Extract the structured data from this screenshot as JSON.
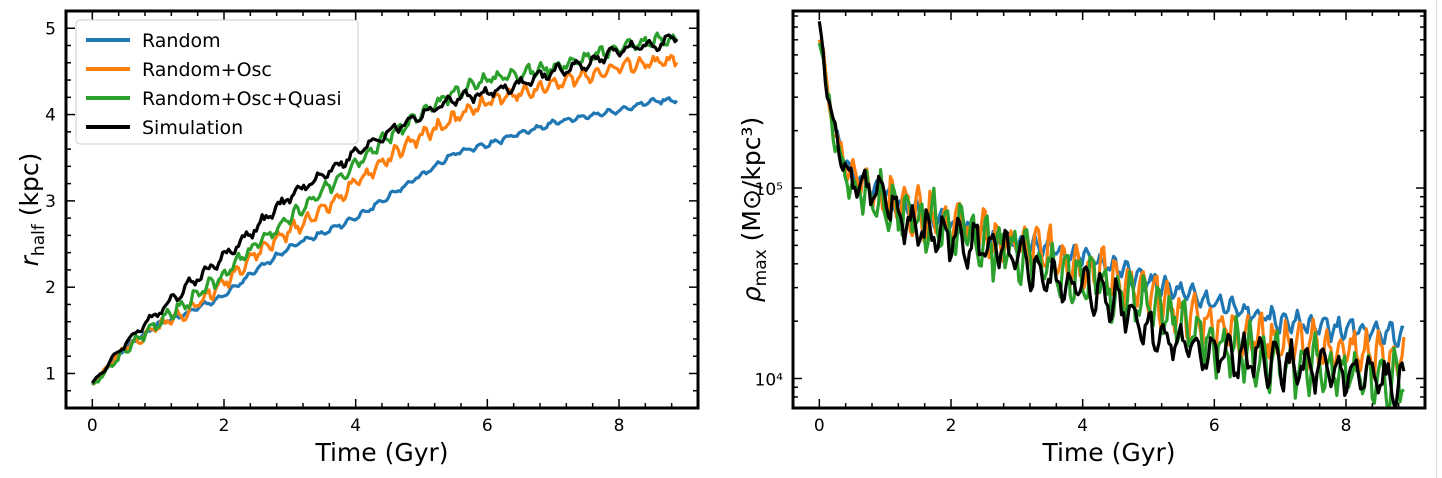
{
  "colors": {
    "Random": "#1f77b4",
    "Random+Osc": "#ff7f0e",
    "Random+Osc+Quasi": "#2ca02c",
    "Simulation": "#000000"
  },
  "chart_data": [
    {
      "type": "line",
      "xlabel": "Time (Gyr)",
      "ylabel": {
        "main": "r",
        "sub": "half",
        "unit": " (kpc)"
      },
      "xlim": [
        -0.4,
        9.2
      ],
      "ylim": [
        0.6,
        5.2
      ],
      "xticks": [
        0,
        2,
        4,
        6,
        8
      ],
      "yticks": [
        1,
        2,
        3,
        4,
        5
      ],
      "yscale": "linear",
      "legend": "top-left",
      "series": [
        {
          "name": "Random",
          "color": "#1f77b4",
          "width": 3.2,
          "points": [
            [
              0,
              0.87
            ],
            [
              0.5,
              1.3
            ],
            [
              1,
              1.57
            ],
            [
              1.5,
              1.72
            ],
            [
              2,
              1.9
            ],
            [
              2.5,
              2.2
            ],
            [
              3,
              2.47
            ],
            [
              3.5,
              2.63
            ],
            [
              4,
              2.8
            ],
            [
              4.5,
              3.05
            ],
            [
              5,
              3.3
            ],
            [
              5.5,
              3.55
            ],
            [
              6,
              3.65
            ],
            [
              6.5,
              3.78
            ],
            [
              7,
              3.9
            ],
            [
              7.5,
              3.98
            ],
            [
              8,
              4.05
            ],
            [
              8.5,
              4.15
            ],
            [
              8.9,
              4.18
            ]
          ],
          "noise": {
            "amp": 0.035,
            "period": 0.22,
            "seed": 1
          }
        },
        {
          "name": "Random+Osc",
          "color": "#ff7f0e",
          "width": 3.2,
          "points": [
            [
              0,
              0.87
            ],
            [
              0.5,
              1.3
            ],
            [
              1,
              1.55
            ],
            [
              1.5,
              1.75
            ],
            [
              2,
              2.05
            ],
            [
              2.5,
              2.4
            ],
            [
              3,
              2.65
            ],
            [
              3.5,
              2.9
            ],
            [
              4,
              3.2
            ],
            [
              4.5,
              3.5
            ],
            [
              5,
              3.75
            ],
            [
              5.5,
              3.95
            ],
            [
              6,
              4.15
            ],
            [
              6.5,
              4.25
            ],
            [
              7,
              4.35
            ],
            [
              7.5,
              4.45
            ],
            [
              8,
              4.55
            ],
            [
              8.5,
              4.6
            ],
            [
              8.9,
              4.63
            ]
          ],
          "noise": {
            "amp": 0.085,
            "period": 0.22,
            "seed": 2
          }
        },
        {
          "name": "Random+Osc+Quasi",
          "color": "#2ca02c",
          "width": 3.2,
          "points": [
            [
              0,
              0.85
            ],
            [
              0.5,
              1.27
            ],
            [
              1,
              1.6
            ],
            [
              1.5,
              1.85
            ],
            [
              2,
              2.15
            ],
            [
              2.5,
              2.5
            ],
            [
              3,
              2.8
            ],
            [
              3.5,
              3.1
            ],
            [
              4,
              3.45
            ],
            [
              4.5,
              3.75
            ],
            [
              5,
              4
            ],
            [
              5.5,
              4.25
            ],
            [
              6,
              4.42
            ],
            [
              6.5,
              4.48
            ],
            [
              7,
              4.55
            ],
            [
              7.5,
              4.65
            ],
            [
              8,
              4.78
            ],
            [
              8.5,
              4.85
            ],
            [
              8.9,
              4.88
            ]
          ],
          "noise": {
            "amp": 0.085,
            "period": 0.22,
            "seed": 3
          }
        },
        {
          "name": "Simulation",
          "color": "#000000",
          "width": 3.2,
          "points": [
            [
              0,
              0.88
            ],
            [
              0.5,
              1.35
            ],
            [
              1,
              1.72
            ],
            [
              1.5,
              2.05
            ],
            [
              2,
              2.35
            ],
            [
              2.5,
              2.7
            ],
            [
              3,
              3.05
            ],
            [
              3.5,
              3.3
            ],
            [
              4,
              3.55
            ],
            [
              4.5,
              3.8
            ],
            [
              5,
              4
            ],
            [
              5.5,
              4.18
            ],
            [
              6,
              4.25
            ],
            [
              6.5,
              4.35
            ],
            [
              7,
              4.5
            ],
            [
              7.5,
              4.58
            ],
            [
              8,
              4.75
            ],
            [
              8.5,
              4.8
            ],
            [
              8.9,
              4.9
            ]
          ],
          "noise": {
            "amp": 0.07,
            "period": 0.28,
            "seed": 4
          }
        }
      ]
    },
    {
      "type": "line",
      "xlabel": "Time (Gyr)",
      "ylabel": {
        "main": "ρ",
        "sub": "max",
        "unit": " (M⊙/kpc³)"
      },
      "xlim": [
        -0.4,
        9.2
      ],
      "ylim": [
        7000,
        850000
      ],
      "xticks": [
        0,
        2,
        4,
        6,
        8
      ],
      "yticks": [
        10000,
        100000
      ],
      "ytick_labels": [
        "10⁴",
        "10⁵"
      ],
      "yscale": "log",
      "series": [
        {
          "name": "Random",
          "color": "#1f77b4",
          "width": 3.2,
          "points": [
            [
              0,
              600000
            ],
            [
              0.05,
              550000
            ],
            [
              0.1,
              350000
            ],
            [
              0.2,
              220000
            ],
            [
              0.35,
              150000
            ],
            [
              0.5,
              120000
            ],
            [
              0.75,
              100000
            ],
            [
              1,
              90000
            ],
            [
              1.5,
              75000
            ],
            [
              2,
              65000
            ],
            [
              2.5,
              57000
            ],
            [
              3,
              52000
            ],
            [
              3.5,
              48000
            ],
            [
              4,
              44000
            ],
            [
              4.5,
              38000
            ],
            [
              5,
              32000
            ],
            [
              5.5,
              28000
            ],
            [
              6,
              25000
            ],
            [
              6.5,
              22000
            ],
            [
              7,
              20000
            ],
            [
              7.5,
              19000
            ],
            [
              8,
              18000
            ],
            [
              8.5,
              17500
            ],
            [
              8.9,
              17000
            ]
          ],
          "noise": {
            "amp": 0.06,
            "period": 0.2,
            "seed": 5
          }
        },
        {
          "name": "Random+Osc",
          "color": "#ff7f0e",
          "width": 3.2,
          "points": [
            [
              0,
              650000
            ],
            [
              0.05,
              580000
            ],
            [
              0.1,
              350000
            ],
            [
              0.2,
              210000
            ],
            [
              0.35,
              140000
            ],
            [
              0.5,
              115000
            ],
            [
              0.75,
              100000
            ],
            [
              1,
              88000
            ],
            [
              1.5,
              75000
            ],
            [
              2,
              65000
            ],
            [
              2.5,
              56000
            ],
            [
              3,
              50000
            ],
            [
              3.5,
              45000
            ],
            [
              4,
              40000
            ],
            [
              4.5,
              33000
            ],
            [
              5,
              27000
            ],
            [
              5.5,
              22000
            ],
            [
              6,
              19000
            ],
            [
              6.5,
              17000
            ],
            [
              7,
              15500
            ],
            [
              7.5,
              14500
            ],
            [
              8,
              14000
            ],
            [
              8.5,
              13000
            ],
            [
              8.9,
              12500
            ]
          ],
          "noise": {
            "amp": 0.13,
            "period": 0.2,
            "seed": 6
          }
        },
        {
          "name": "Random+Osc+Quasi",
          "color": "#2ca02c",
          "width": 3.2,
          "points": [
            [
              0,
              620000
            ],
            [
              0.05,
              560000
            ],
            [
              0.1,
              330000
            ],
            [
              0.2,
              200000
            ],
            [
              0.35,
              130000
            ],
            [
              0.5,
              100000
            ],
            [
              0.75,
              90000
            ],
            [
              1,
              82000
            ],
            [
              1.5,
              70000
            ],
            [
              2,
              60000
            ],
            [
              2.5,
              52000
            ],
            [
              3,
              46000
            ],
            [
              3.5,
              40000
            ],
            [
              4,
              35000
            ],
            [
              4.5,
              29000
            ],
            [
              5,
              23000
            ],
            [
              5.5,
              18500
            ],
            [
              6,
              15500
            ],
            [
              6.5,
              13500
            ],
            [
              7,
              12500
            ],
            [
              7.5,
              11500
            ],
            [
              8,
              10500
            ],
            [
              8.5,
              9800
            ],
            [
              8.9,
              9500
            ]
          ],
          "noise": {
            "amp": 0.16,
            "period": 0.2,
            "seed": 7
          }
        },
        {
          "name": "Simulation",
          "color": "#000000",
          "width": 3.2,
          "points": [
            [
              0,
              700000
            ],
            [
              0.05,
              600000
            ],
            [
              0.1,
              330000
            ],
            [
              0.2,
              220000
            ],
            [
              0.35,
              140000
            ],
            [
              0.5,
              110000
            ],
            [
              0.75,
              100000
            ],
            [
              1,
              85000
            ],
            [
              1.25,
              70000
            ],
            [
              1.5,
              60000
            ],
            [
              2,
              55000
            ],
            [
              2.5,
              50000
            ],
            [
              3,
              42000
            ],
            [
              3.5,
              33000
            ],
            [
              4,
              30000
            ],
            [
              4.5,
              26000
            ],
            [
              5,
              18000
            ],
            [
              5.5,
              15000
            ],
            [
              6,
              13500
            ],
            [
              6.5,
              12500
            ],
            [
              7,
              12000
            ],
            [
              7.5,
              11000
            ],
            [
              8,
              10500
            ],
            [
              8.5,
              10000
            ],
            [
              8.9,
              8500
            ]
          ],
          "noise": {
            "amp": 0.12,
            "period": 0.24,
            "seed": 8
          }
        }
      ]
    }
  ]
}
